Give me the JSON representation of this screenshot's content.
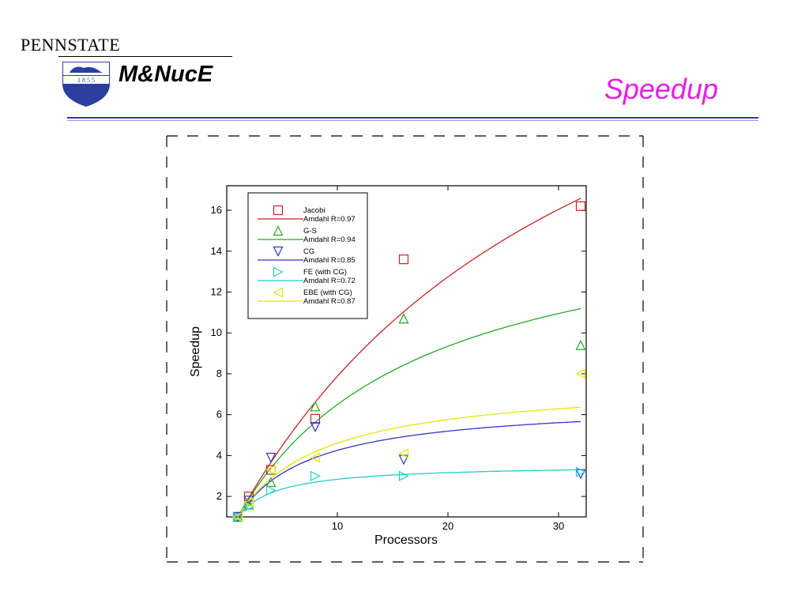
{
  "header": {
    "university": "PENNSTATE",
    "department": "M&NucE",
    "seal_text": "1 8 5 5",
    "slide_title": "Speedup"
  },
  "colors": {
    "title": "#e61ee6",
    "rule": "#3333cc",
    "jacobi": "#cc2222",
    "gs": "#22aa22",
    "cg": "#3333cc",
    "fe": "#22cccc",
    "ebe": "#e6e600"
  },
  "chart_data": {
    "type": "scatter",
    "xlabel": "Processors",
    "ylabel": "Speedup",
    "xlim": [
      0,
      32.5
    ],
    "ylim": [
      1,
      17.2
    ],
    "xticks": [
      10,
      20,
      30
    ],
    "yticks": [
      2,
      4,
      6,
      8,
      10,
      12,
      14,
      16
    ],
    "legend_position": "top-left",
    "grid": false,
    "series": [
      {
        "name": "Jacobi",
        "kind": "points",
        "marker": "square",
        "color": "#cc2222",
        "x": [
          1,
          2,
          4,
          8,
          16,
          32
        ],
        "y": [
          1.0,
          2.0,
          3.3,
          5.8,
          13.6,
          16.2
        ]
      },
      {
        "name": "Amdahl R=0.97",
        "kind": "curve",
        "color": "#cc2222",
        "r": 0.97,
        "x": [
          1,
          2,
          4,
          8,
          16,
          32
        ],
        "y": [
          1.0,
          1.94,
          3.67,
          6.61,
          11.03,
          16.58
        ]
      },
      {
        "name": "G-S",
        "kind": "points",
        "marker": "triangle-up",
        "color": "#22aa22",
        "x": [
          1,
          2,
          4,
          8,
          16,
          32
        ],
        "y": [
          1.0,
          1.6,
          2.7,
          6.4,
          10.7,
          9.4
        ]
      },
      {
        "name": "Amdahl R=0.94",
        "kind": "curve",
        "color": "#22aa22",
        "r": 0.94,
        "x": [
          1,
          2,
          4,
          8,
          16,
          32
        ],
        "y": [
          1.0,
          1.89,
          3.39,
          5.63,
          8.42,
          11.19
        ]
      },
      {
        "name": "CG",
        "kind": "points",
        "marker": "triangle-down",
        "color": "#3333cc",
        "x": [
          1,
          2,
          4,
          8,
          16,
          32
        ],
        "y": [
          1.0,
          1.8,
          3.9,
          5.4,
          3.8,
          3.1
        ]
      },
      {
        "name": "Amdahl R=0.85",
        "kind": "curve",
        "color": "#3333cc",
        "r": 0.85,
        "x": [
          1,
          2,
          4,
          8,
          16,
          32
        ],
        "y": [
          1.0,
          1.74,
          2.76,
          3.9,
          4.92,
          5.66
        ]
      },
      {
        "name": "FE (with CG)",
        "kind": "points",
        "marker": "triangle-right",
        "color": "#22cccc",
        "x": [
          1,
          2,
          4,
          8,
          16,
          32
        ],
        "y": [
          1.0,
          1.5,
          2.3,
          3.0,
          3.0,
          3.2
        ]
      },
      {
        "name": "Amdahl R=0.72",
        "kind": "curve",
        "color": "#22cccc",
        "r": 0.72,
        "x": [
          1,
          2,
          4,
          8,
          16,
          32
        ],
        "y": [
          1.0,
          1.56,
          2.17,
          2.7,
          3.08,
          3.3
        ]
      },
      {
        "name": "EBE (with CG)",
        "kind": "points",
        "marker": "triangle-left",
        "color": "#e6e600",
        "x": [
          1,
          2,
          4,
          8,
          16,
          32
        ],
        "y": [
          1.0,
          1.7,
          3.3,
          3.9,
          4.1,
          8.0
        ]
      },
      {
        "name": "Amdahl R=0.87",
        "kind": "curve",
        "color": "#e6e600",
        "r": 0.87,
        "x": [
          1,
          2,
          4,
          8,
          16,
          32
        ],
        "y": [
          1.0,
          1.77,
          2.88,
          4.19,
          5.42,
          6.35
        ]
      }
    ]
  }
}
